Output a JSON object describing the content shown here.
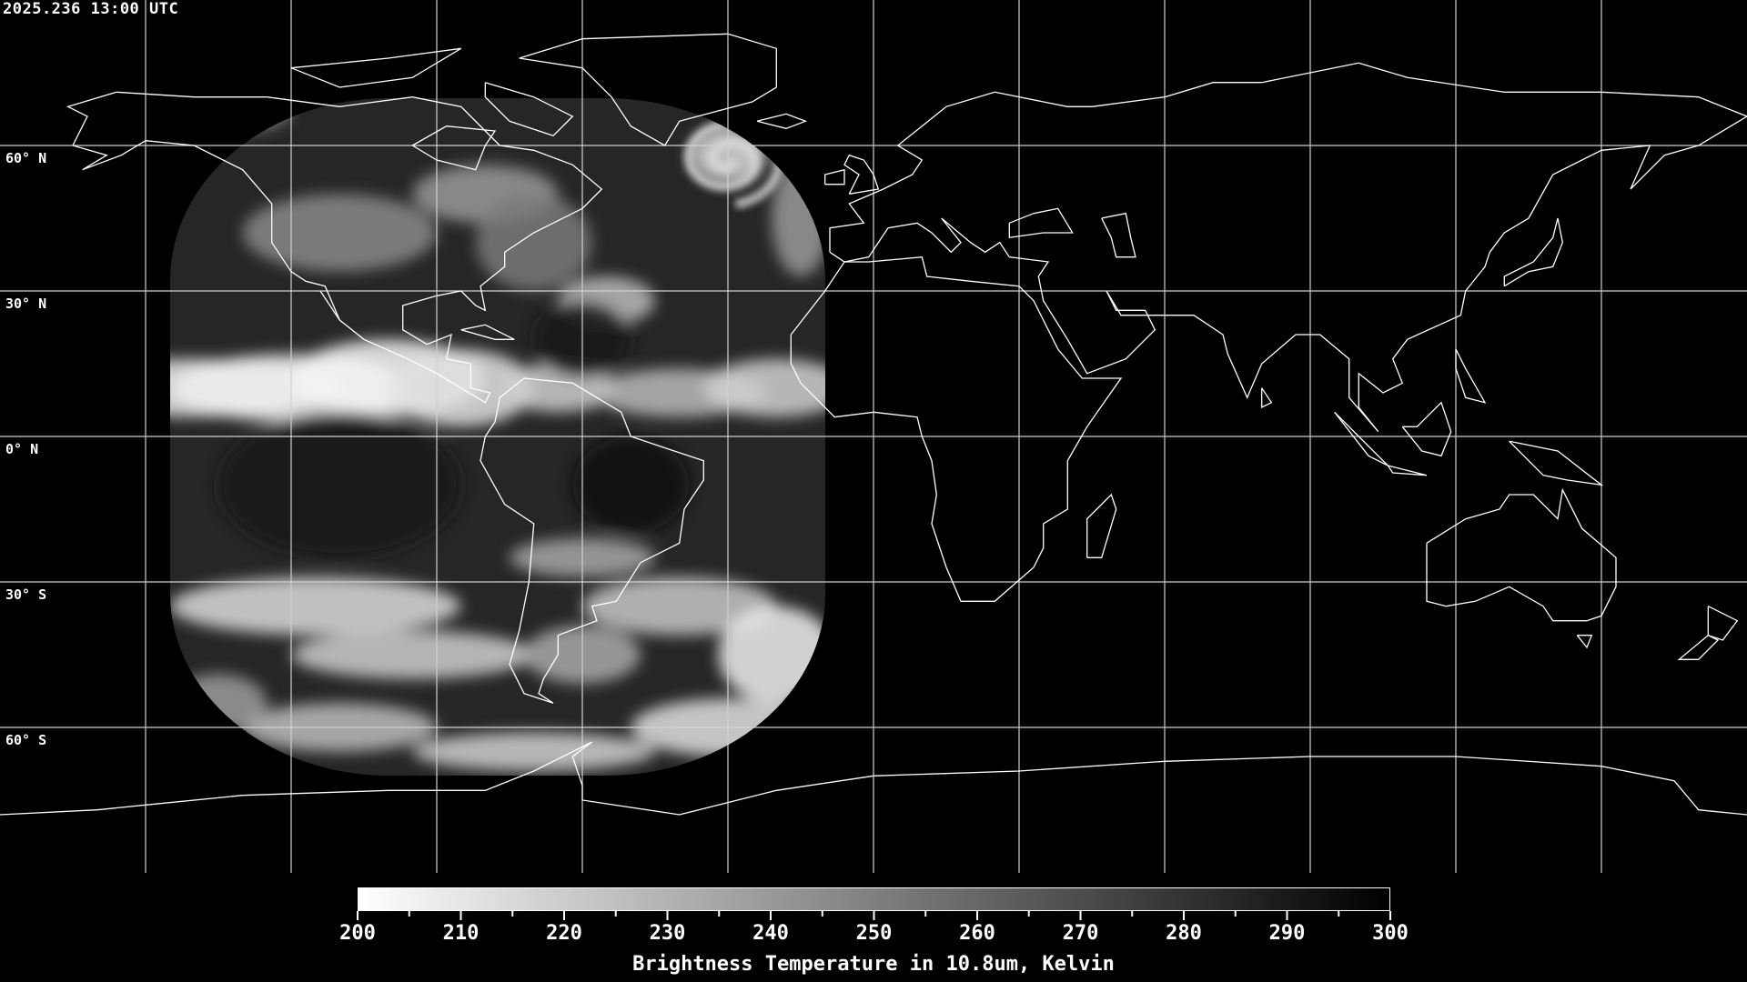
{
  "timestamp": "2025.236 13:00 UTC",
  "map": {
    "projection": "equirectangular",
    "lon_range": [
      -180,
      180
    ],
    "lat_range": [
      -90,
      90
    ],
    "grid_spacing_deg": 30,
    "grid_color": "#d0d0d0",
    "coastline_color": "#ffffff",
    "lat_labels": [
      "60° N",
      "30° N",
      "0° N",
      "30° S",
      "60° S"
    ],
    "satellite_coverage_lon": [
      -145,
      -10
    ],
    "satellite_coverage_lat": [
      -70,
      70
    ]
  },
  "colorbar": {
    "min": 200,
    "max": 300,
    "min_color": "#ffffff",
    "max_color": "#000000",
    "tick_labels": [
      "200",
      "210",
      "220",
      "230",
      "240",
      "250",
      "260",
      "270",
      "280",
      "290",
      "300"
    ],
    "title": "Brightness Temperature in 10.8um, Kelvin"
  }
}
